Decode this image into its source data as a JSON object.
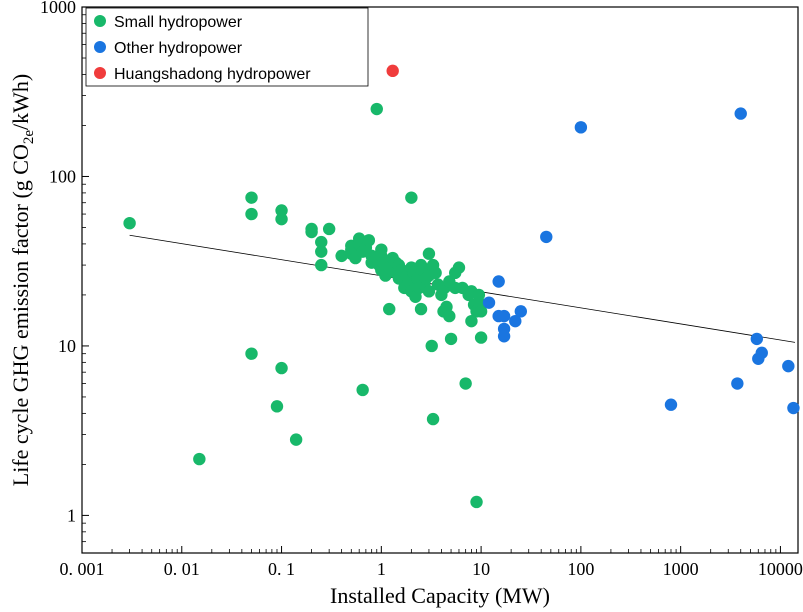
{
  "chart_data": {
    "type": "scatter",
    "xscale": "log",
    "yscale": "log",
    "xlim": [
      0.001,
      15000
    ],
    "ylim": [
      0.6,
      1000
    ],
    "xlabel": "Installed Capacity (MW)",
    "ylabel": {
      "prefix": "Life cycle GHG emission factor (g CO",
      "sub": "2e",
      "suffix": "/kWh)"
    },
    "xticks": [
      0.001,
      0.01,
      0.1,
      1,
      10,
      100,
      1000,
      10000
    ],
    "xtick_labels": [
      "0. 001",
      "0. 01",
      "0. 1",
      "1",
      "10",
      "100",
      "1000",
      "10000"
    ],
    "yticks": [
      1,
      10,
      100,
      1000
    ],
    "ytick_labels": [
      "1",
      "10",
      "100",
      "1000"
    ],
    "legend_position": "top-left",
    "trendline": {
      "x": [
        0.003,
        14000
      ],
      "y": [
        45,
        10.5
      ]
    },
    "series": [
      {
        "name": "Small hydropower",
        "color": "#18b86a",
        "points": [
          [
            0.003,
            53
          ],
          [
            0.015,
            2.15
          ],
          [
            0.05,
            75
          ],
          [
            0.05,
            60
          ],
          [
            0.05,
            9
          ],
          [
            0.09,
            4.4
          ],
          [
            0.1,
            63
          ],
          [
            0.1,
            56
          ],
          [
            0.1,
            7.4
          ],
          [
            0.14,
            2.8
          ],
          [
            0.2,
            49
          ],
          [
            0.2,
            47
          ],
          [
            0.25,
            41
          ],
          [
            0.25,
            36
          ],
          [
            0.25,
            30
          ],
          [
            0.3,
            49
          ],
          [
            0.4,
            34
          ],
          [
            0.5,
            39
          ],
          [
            0.5,
            37
          ],
          [
            0.5,
            35
          ],
          [
            0.55,
            33
          ],
          [
            0.6,
            43
          ],
          [
            0.6,
            40
          ],
          [
            0.65,
            36
          ],
          [
            0.65,
            5.5
          ],
          [
            0.7,
            38
          ],
          [
            0.75,
            42
          ],
          [
            0.8,
            34
          ],
          [
            0.8,
            31
          ],
          [
            0.9,
            250
          ],
          [
            0.9,
            33
          ],
          [
            0.95,
            30
          ],
          [
            1.0,
            37
          ],
          [
            1.0,
            34
          ],
          [
            1.0,
            28
          ],
          [
            1.05,
            31
          ],
          [
            1.1,
            26
          ],
          [
            1.2,
            16.5
          ],
          [
            1.2,
            29
          ],
          [
            1.3,
            33
          ],
          [
            1.4,
            31
          ],
          [
            1.4,
            27
          ],
          [
            1.5,
            30
          ],
          [
            1.5,
            25
          ],
          [
            1.6,
            28
          ],
          [
            1.7,
            22
          ],
          [
            1.8,
            26
          ],
          [
            1.9,
            24
          ],
          [
            2.0,
            75
          ],
          [
            2.0,
            29
          ],
          [
            2.0,
            21
          ],
          [
            2.1,
            27
          ],
          [
            2.2,
            19.5
          ],
          [
            2.3,
            25
          ],
          [
            2.4,
            22
          ],
          [
            2.5,
            16.5
          ],
          [
            2.5,
            30
          ],
          [
            2.6,
            28
          ],
          [
            2.7,
            23
          ],
          [
            2.8,
            25
          ],
          [
            3.0,
            35
          ],
          [
            3.0,
            26
          ],
          [
            3.0,
            21
          ],
          [
            3.2,
            10
          ],
          [
            3.3,
            3.7
          ],
          [
            3.3,
            30
          ],
          [
            3.5,
            27
          ],
          [
            3.7,
            23
          ],
          [
            4.0,
            20
          ],
          [
            4.2,
            16
          ],
          [
            4.3,
            22
          ],
          [
            4.5,
            17
          ],
          [
            4.8,
            24
          ],
          [
            5.0,
            11
          ],
          [
            5.5,
            27
          ],
          [
            5.5,
            22
          ],
          [
            6.0,
            29
          ],
          [
            6.5,
            22
          ],
          [
            7.0,
            6
          ],
          [
            7.5,
            20
          ],
          [
            8.0,
            21
          ],
          [
            8.0,
            14
          ],
          [
            8.5,
            17.5
          ],
          [
            9.0,
            1.2
          ],
          [
            9.0,
            16
          ],
          [
            9.5,
            20
          ],
          [
            9.5,
            18
          ],
          [
            10.0,
            11.2
          ],
          [
            10.0,
            16
          ],
          [
            4.8,
            15
          ]
        ]
      },
      {
        "name": "Other hydropower",
        "color": "#1a75e0",
        "points": [
          [
            12,
            18
          ],
          [
            15,
            24
          ],
          [
            15,
            15
          ],
          [
            17,
            15
          ],
          [
            17,
            12.6
          ],
          [
            17,
            11.4
          ],
          [
            22,
            14
          ],
          [
            25,
            16
          ],
          [
            45,
            44
          ],
          [
            100,
            195
          ],
          [
            800,
            4.5
          ],
          [
            3700,
            6
          ],
          [
            4000,
            235
          ],
          [
            5800,
            11
          ],
          [
            6000,
            8.4
          ],
          [
            6500,
            9.1
          ],
          [
            12000,
            7.6
          ],
          [
            13500,
            4.3
          ]
        ]
      },
      {
        "name": "Huangshadong hydropower",
        "color": "#f03c3c",
        "points": [
          [
            1.3,
            420
          ]
        ]
      }
    ]
  }
}
